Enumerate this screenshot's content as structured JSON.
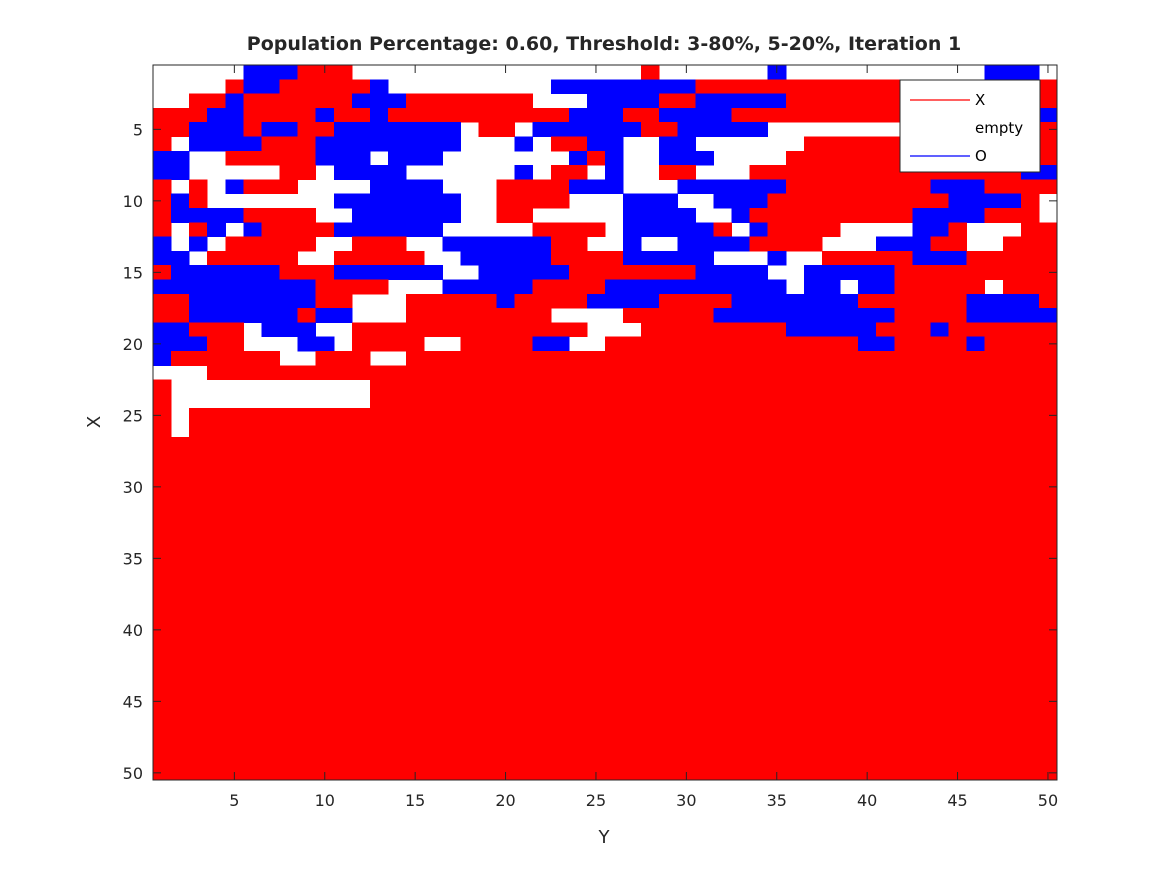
{
  "chart_data": {
    "type": "heatmap",
    "title": "Population Percentage: 0.60, Threshold: 3-80%, 5-20%, Iteration 1",
    "xlabel": "Y",
    "ylabel": "X",
    "xlim": [
      0.5,
      50.5
    ],
    "ylim": [
      0.5,
      50.5
    ],
    "y_direction": "reversed",
    "x_ticks": [
      5,
      10,
      15,
      20,
      25,
      30,
      35,
      40,
      45,
      50
    ],
    "y_ticks": [
      5,
      10,
      15,
      20,
      25,
      30,
      35,
      40,
      45,
      50
    ],
    "legend_placement": "top-right",
    "colors": {
      "X": "#ff0000",
      "empty": "#ffffff",
      "O": "#0000ff"
    },
    "series": [
      {
        "name": "X"
      },
      {
        "name": "empty"
      },
      {
        "name": "O"
      }
    ],
    "grid_encoding": "row r (X = r+1) string, char c (Y = c+1): R = X, B = O, . = empty",
    "grid": [
      ".....BBBRRR................R......B...........BBB...BBRRB..R.R...",
      "....RBBRRRRRB.........BBBBBBBBRRRRRRRRRRRRRBBBBRRRBBBBB...B.......",
      "..RRBRRRRRRBBBRRRRRRR...BBBBRRBBBBBRRRRRRRRRRBRRRRBBBBBRRRRR......",
      "RRRBBRRRRBRRBRRRRRRRRRRBBBRRBBBBRRRRRRRRRRBBRRRRBBBRRRRRRRR.......",
      "RRBBBRBBRRBBBBBBB.RR.BBBBBBRRBBBBB........BBBRRRRRRR.......RR.....",
      "R.BBBBRRRBBBBBBBB...B.RRBB..BB......RRRRRRRRRRRRRRRRRRR.......RR..",
      "BB..RRRRRBBB.BBB.......BRB..BBB....RRRRRRRRRRRRRRRRRRRRRRRR.......",
      "BB.....RR.BBBB......B.RR.B..RR...RRRRRRRRRRRRRRRBBBRRRR.....R....R",
      "R.R.BRRR....BBBB...RRRRBBB...BBBBBBRRRRRRRRBBBRRRRR.......RRRRRRRR",
      "RBR.......BBBBBBB..RRRR...BBB..BBBRRRRRRRRRRBBBBR......B.....BBRRR",
      "RBBBBRRRR..BBBBBB..RR.....BBBB..BRRRRRRRRRBBBBRRR.......BBBBRBBBRB",
      "R.RB.BRRRRBBBBBB.....RRRR.BBBBBR.BRRRR....BBR...RRRR.......BBBBBBB",
      "B.B.RRRRR..RRR..BBBBBBRR..B..BBBBRRRR...BBBRR..RRRRRRRR....BBBBBBB",
      "BB.RRRRR..RRRRR..BBBBBRRRRBBBBB...B..RRRRRBBBRRRRRRRRR..BBB.BBBBBB",
      "RBBBBBBRRRBBBBBB..BBBBBRRRRRRRBBBB..BBBBBRRRRRRRRRRRRRR.BBB..BBBBB",
      "BBBBBBBBBRRRR...BBBBBRRRRBBBBBBBBBB.BB.BBRRRRR.RRRRRR.RRRRRRRBBBBB",
      "RRBBBBBBBRR...RRRRRBRRRRBBBBRRRRBBBBBBBRRRRRRBBBBRR.BBBBBRRRRRRRRR",
      "RRBBBBBBRBB...RRRRRRRR....RRRRRBBBBBBBBBBRRRRBBBBBBBRRRRRBRRRRRRRR",
      "BBRRR.BBB..RRRRRRRRRRRRR...RRRRRRRRBBBBBRRRBRRRRRRRRRBBBBBBBRRRRRR",
      "BBBRR...BB.RRRR..RRRRBB..RRRRRRRRRRRRRRBBRRRRBRRRRRRRBBBBBBRRRRRRR",
      "BRRRRRR..RRR..RRRRRRRRRRRRRRRRRRRRRRRRRRRRRRRRRRRRRRRRRBBBBB.RRRRR",
      "...RRRRRRRRRRRRRRRRRRRRRRRRRRRRRRRRRRRRRRRRRRRRRRRRRRRRRRRRRRRRRRR",
      "R...........RRRRRRRRRRRRRRRRRRRRRRRRRRRRRRRRRRRRRRRRRRRRRRRRRRRRRR",
      "R...........RRRRRRRRRRRRRRRRRRRRRRRRRRRRRRRRRRRRRRRRRRRRRRRRRRRRRR",
      "R.RRRRRRRRRRRRRRRRRRRRRRRRRRRRRRRRRRRRRRRRRRRRRRRRRRRRRRRRRRRRRRRR",
      "R.RRRRRRRRRRRRRRRRRRRRRRRRRRRRRRRRRRRRRRRRRRRRRRRRRRRRRRRRRRRRRRRR",
      "RRRRRRRRRRRRRRRRRRRRRRRRRRRRRRRRRRRRRRRRRRRRRRRRRRRRRRRRRRRRRRRRRR",
      "RRRRRRRRRRRRRRRRRRRRRRRRRRRRRRRRRRRRRRRRRRRRRRRRRRRRRRRRRRRRRRRRRR",
      "RRRRRRRRRRRRRRRRRRRRRRRRRRRRRRRRRRRRRRRRRRRRRRRRRRRRRRRRRRRRRRRRRR",
      "RRRRRRRRRRRRRRRRRRRRRRRRRRRRRRRRRRRRRRRRRRRRRRRRRRRRRRRRRRRRRRRRRR",
      "RRRRRRRRRRRRRRRRRRRRRRRRRRRRRRRRRRRRRRRRRRRRRRRRRRRRRRRRRRRRRRRRRR",
      "RRRRRRRRRRRRRRRRRRRRRRRRRRRRRRRRRRRRRRRRRRRRRRRRRRRRRRRRRRRRRRRRRR",
      "RRRRRRRRRRRRRRRRRRRRRRRRRRRRRRRRRRRRRRRRRRRRRRRRRRRRRRRRRRRRRRRRRR",
      "RRRRRRRRRRRRRRRRRRRRRRRRRRRRRRRRRRRRRRRRRRRRRRRRRRRRRRRRRRRRRRRRRR",
      "RRRRRRRRRRRRRRRRRRRRRRRRRRRRRRRRRRRRRRRRRRRRRRRRRRRRRRRRRRRRRRRRRR",
      "RRRRRRRRRRRRRRRRRRRRRRRRRRRRRRRRRRRRRRRRRRRRRRRRRRRRRRRRRRRRRRRRRR",
      "RRRRRRRRRRRRRRRRRRRRRRRRRRRRRRRRRRRRRRRRRRRRRRRRRRRRRRRRRRRRRRRRRR",
      "RRRRRRRRRRRRRRRRRRRRRRRRRRRRRRRRRRRRRRRRRRRRRRRRRRRRRRRRRRRRRRRRRR",
      "RRRRRRRRRRRRRRRRRRRRRRRRRRRRRRRRRRRRRRRRRRRRRRRRRRRRRRRRRRRRRRRRRR",
      "RRRRRRRRRRRRRRRRRRRRRRRRRRRRRRRRRRRRRRRRRRRRRRRRRRRRRRRRRRRRRRRRRR",
      "RRRRRRRRRRRRRRRRRRRRRRRRRRRRRRRRRRRRRRRRRRRRRRRRRRRRRRRRRRRRRRRRRR",
      "RRRRRRRRRRRRRRRRRRRRRRRRRRRRRRRRRRRRRRRRRRRRRRRRRRRRRRRRRRRRRRRRRR",
      "RRRRRRRRRRRRRRRRRRRRRRRRRRRRRRRRRRRRRRRRRRRRRRRRRRRRRRRRRRRRRRRRRR",
      "RRRRRRRRRRRRRRRRRRRRRRRRRRRRRRRRRRRRRRRRRRRRRRRRRRRRRRRRRRRRRRRRRR",
      "RRRRRRRRRRRRRRRRRRRRRRRRRRRRRRRRRRRRRRRRRRRRRRRRRRRRRRRRRRRRRRRRRR",
      "RRRRRRRRRRRRRRRRRRRRRRRRRRRRRRRRRRRRRRRRRRRRRRRRRRRRRRRRRRRRRRRRRR",
      "RRRRRRRRRRRRRRRRRRRRRRRRRRRRRRRRRRRRRRRRRRRRRRRRRRRRRRRRRRRRRRRRRR",
      "RRRRRRRRRRRRRRRRRRRRRRRRRRRRRRRRRRRRRRRRRRRRRRRRRRRRRRRRRRRRRRRRRR",
      "RRRRRRRRRRRRRRRRRRRRRRRRRRRRRRRRRRRRRRRRRRRRRRRRRRRRRRRRRRRRRRRRRR",
      "RRRRRRRRRRRRRRRRRRRRRRRRRRRRRRRRRRRRRRRRRRRRRRRRRRRRRRRRRRRRRRRRRR"
    ]
  }
}
